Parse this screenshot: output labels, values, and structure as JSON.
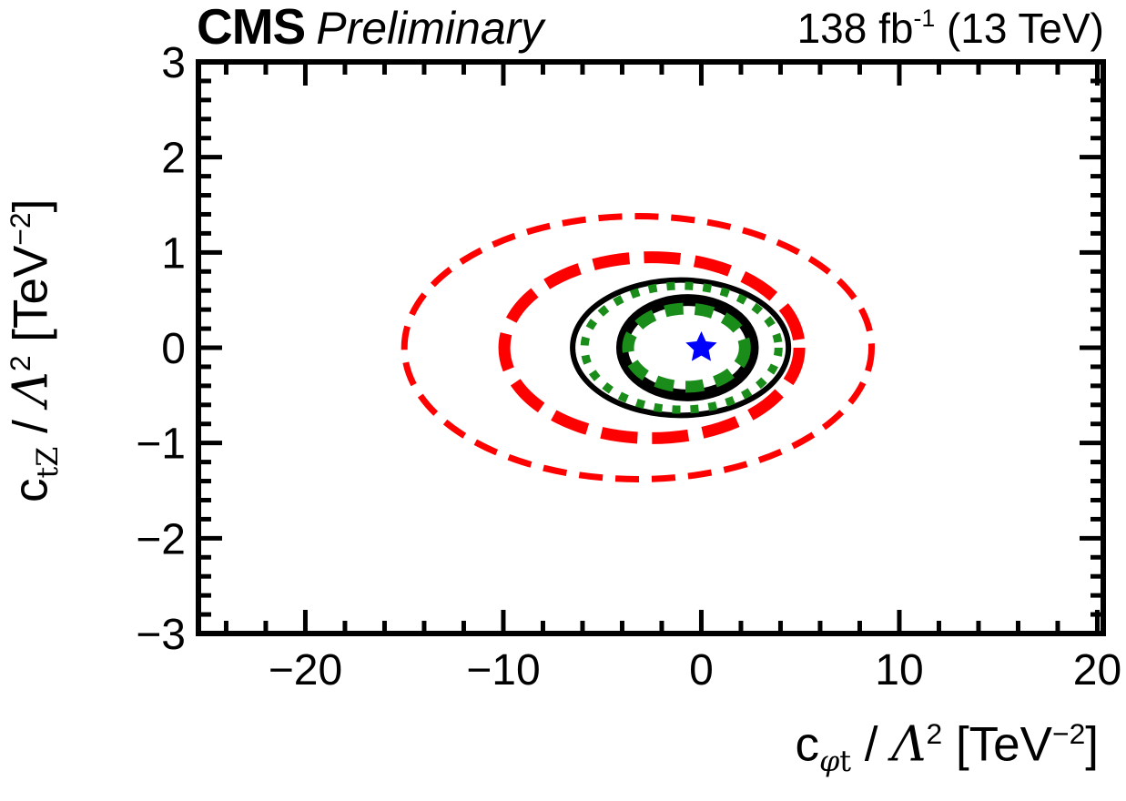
{
  "header": {
    "experiment": "CMS",
    "status": "Preliminary",
    "lumi_prefix": "138 fb",
    "lumi_sup": "-1",
    "energy": " (13 TeV)"
  },
  "x_title": {
    "base": "c",
    "sub_symbol": "φ",
    "sub_text": "t",
    "slash": " / ",
    "lambda": "Λ",
    "lambda_sup": "2",
    "unit_open": " [TeV",
    "unit_sup": "−2",
    "unit_close": "]"
  },
  "y_title": {
    "base": "c",
    "sub_symbol": "",
    "sub_text": "tZ",
    "slash": " / ",
    "lambda": "Λ",
    "lambda_sup": "2",
    "unit_open": " [TeV",
    "unit_sup": "−2",
    "unit_close": "]"
  },
  "chart_data": {
    "type": "contour",
    "title": "CMS Preliminary  138 fb⁻¹ (13 TeV)",
    "xlabel": "c_φt / Λ² [TeV⁻²]",
    "ylabel": "c_tZ / Λ² [TeV⁻²]",
    "grid": false,
    "legend": "none",
    "x_axis": {
      "range": [
        -25.4,
        20.3
      ],
      "major_ticks": [
        -20,
        -10,
        0,
        10,
        20
      ],
      "minor_tick_step": 2
    },
    "y_axis": {
      "range": [
        -3,
        3
      ],
      "major_ticks": [
        -3,
        -2,
        -1,
        0,
        1,
        2,
        3
      ],
      "minor_tick_step": 0.2
    },
    "contours": [
      {
        "name": "red-dashed-outer",
        "color": "#ff0000",
        "line_style": "dashed",
        "line_width": 7,
        "dash": [
          26,
          14
        ],
        "center_x": -3.2,
        "center_y": 0.0,
        "rx": 11.8,
        "ry": 1.38
      },
      {
        "name": "red-dashed-inner",
        "color": "#ff0000",
        "line_style": "dashed",
        "line_width": 13,
        "dash": [
          40,
          16
        ],
        "center_x": -2.5,
        "center_y": 0.0,
        "rx": 7.45,
        "ry": 0.95
      },
      {
        "name": "black-solid-outer",
        "color": "#000000",
        "line_style": "solid",
        "line_width": 6,
        "dash": null,
        "center_x": -1.05,
        "center_y": 0.0,
        "rx": 5.45,
        "ry": 0.71
      },
      {
        "name": "green-dotted",
        "color": "#1a8c1a",
        "line_style": "dotted",
        "line_width": 9,
        "dash": [
          9,
          11
        ],
        "center_x": -1.0,
        "center_y": 0.0,
        "rx": 4.9,
        "ry": 0.65
      },
      {
        "name": "black-solid-inner",
        "color": "#000000",
        "line_style": "solid",
        "line_width": 13,
        "dash": null,
        "center_x": -0.7,
        "center_y": 0.0,
        "rx": 3.3,
        "ry": 0.5
      },
      {
        "name": "green-dashed-inner",
        "color": "#1a8c1a",
        "line_style": "dashed",
        "line_width": 13,
        "dash": [
          20,
          13
        ],
        "center_x": -0.75,
        "center_y": 0.0,
        "rx": 2.95,
        "ry": 0.41
      }
    ],
    "best_fit": {
      "marker": "star",
      "color": "#0000ff",
      "x": 0.0,
      "y": 0.0
    },
    "frame_color": "#000000",
    "background_color": "#ffffff"
  }
}
